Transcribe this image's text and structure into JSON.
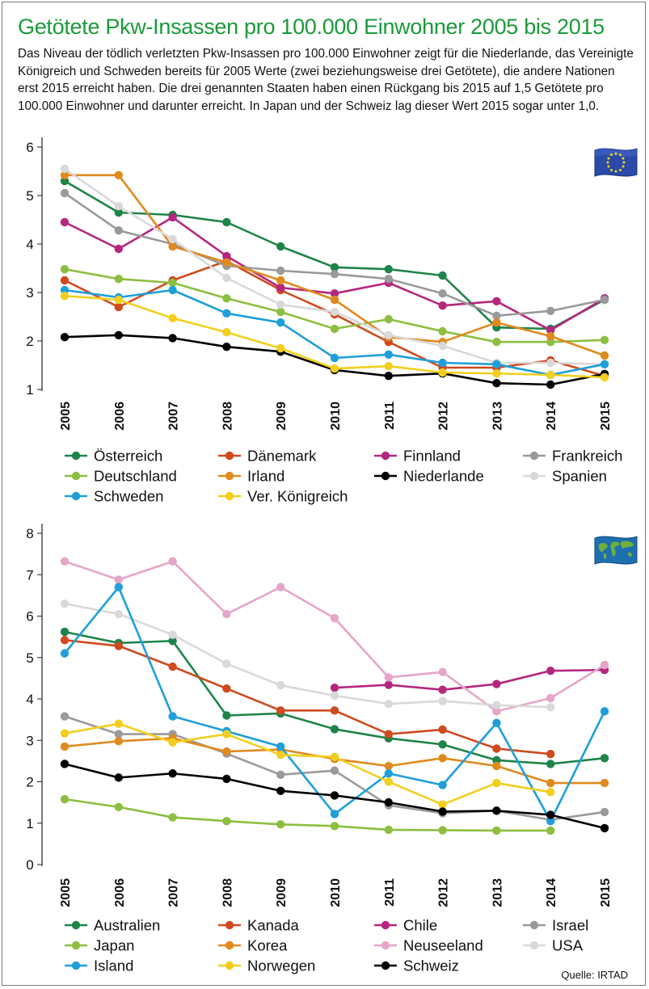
{
  "title": "Getötete Pkw-Insassen pro 100.000 Einwohner 2005 bis 2015",
  "intro": "Das Niveau der tödlich verletzten Pkw-Insassen pro 100.000 Einwohner zeigt für die Niederlande, das Vereinigte Königreich und Schweden bereits für 2005 Werte (zwei beziehungsweise drei Getötete), die andere Nationen erst 2015 erreicht haben. Die drei genannten Staaten haben einen Rückgang bis 2015 auf 1,5 Getötete pro 100.000 Einwohner und darunter erreicht. In Japan und der Schweiz lag dieser Wert 2015 sogar unter 1,0.",
  "source": "Quelle: IRTAD",
  "flags": {
    "top": "eu-flag",
    "bottom": "world-flag"
  },
  "chart_data": [
    {
      "type": "line",
      "title": "",
      "x": [
        "2005",
        "2006",
        "2007",
        "2008",
        "2009",
        "2010",
        "2011",
        "2012",
        "2013",
        "2014",
        "2015"
      ],
      "ylim": [
        1,
        6
      ],
      "yticks": [
        "1",
        "2",
        "3",
        "4",
        "5",
        "6"
      ],
      "series": [
        {
          "name": "Österreich",
          "color": "#1e8449",
          "values": [
            5.3,
            4.65,
            4.6,
            4.45,
            3.95,
            3.52,
            3.48,
            3.35,
            2.28,
            2.25,
            2.85
          ]
        },
        {
          "name": "Dänemark",
          "color": "#cf4a1e",
          "values": [
            3.25,
            2.7,
            3.25,
            3.65,
            3.05,
            2.55,
            1.98,
            1.45,
            1.45,
            1.6,
            1.28
          ]
        },
        {
          "name": "Finnland",
          "color": "#b5277e",
          "values": [
            4.45,
            3.9,
            4.55,
            3.75,
            3.1,
            2.98,
            3.2,
            2.73,
            2.82,
            2.22,
            2.88
          ]
        },
        {
          "name": "Frankreich",
          "color": "#9a9a9a",
          "values": [
            5.05,
            4.28,
            4.0,
            3.55,
            3.45,
            3.38,
            3.28,
            2.98,
            2.52,
            2.62,
            2.85
          ]
        },
        {
          "name": "Deutschland",
          "color": "#8cbf3f",
          "values": [
            3.48,
            3.28,
            3.2,
            2.88,
            2.6,
            2.25,
            2.45,
            2.2,
            1.98,
            1.98,
            2.02
          ]
        },
        {
          "name": "Irland",
          "color": "#e08a1e",
          "values": [
            5.42,
            5.42,
            3.95,
            3.62,
            3.25,
            2.85,
            2.08,
            1.98,
            2.38,
            2.1,
            1.7
          ]
        },
        {
          "name": "Niederlande",
          "color": "#000000",
          "values": [
            2.08,
            2.12,
            2.06,
            1.88,
            1.78,
            1.4,
            1.28,
            1.33,
            1.13,
            1.1,
            1.32
          ]
        },
        {
          "name": "Spanien",
          "color": "#d9d9d9",
          "values": [
            5.55,
            4.78,
            4.1,
            3.3,
            2.75,
            2.6,
            2.12,
            1.9,
            1.55,
            1.55,
            1.52
          ]
        },
        {
          "name": "Schweden",
          "color": "#1e9fd9",
          "values": [
            3.05,
            2.9,
            3.05,
            2.57,
            2.38,
            1.65,
            1.72,
            1.55,
            1.52,
            1.3,
            1.52
          ]
        },
        {
          "name": "Ver. Königreich",
          "color": "#f2cf1e",
          "values": [
            2.93,
            2.85,
            2.47,
            2.18,
            1.85,
            1.43,
            1.48,
            1.35,
            1.33,
            1.3,
            1.25
          ]
        }
      ]
    },
    {
      "type": "line",
      "title": "",
      "x": [
        "2005",
        "2006",
        "2007",
        "2008",
        "2009",
        "2010",
        "2011",
        "2012",
        "2013",
        "2014",
        "2015"
      ],
      "ylim": [
        0,
        8
      ],
      "yticks": [
        "0",
        "1",
        "2",
        "3",
        "4",
        "5",
        "6",
        "7",
        "8"
      ],
      "series": [
        {
          "name": "Australien",
          "color": "#1e8449",
          "values": [
            5.62,
            5.35,
            5.4,
            3.6,
            3.65,
            3.27,
            3.05,
            2.9,
            2.52,
            2.43,
            2.57
          ]
        },
        {
          "name": "Kanada",
          "color": "#cf4a1e",
          "values": [
            5.42,
            5.28,
            4.78,
            4.25,
            3.72,
            3.72,
            3.15,
            3.26,
            2.8,
            2.67,
            null
          ]
        },
        {
          "name": "Chile",
          "color": "#b5277e",
          "values": [
            null,
            null,
            null,
            null,
            null,
            4.27,
            4.34,
            4.22,
            4.36,
            4.68,
            4.7
          ]
        },
        {
          "name": "Israel",
          "color": "#9a9a9a",
          "values": [
            3.58,
            3.15,
            3.15,
            2.68,
            2.17,
            2.27,
            1.43,
            1.24,
            1.3,
            1.08,
            1.27
          ]
        },
        {
          "name": "Japan",
          "color": "#8cbf3f",
          "values": [
            1.58,
            1.39,
            1.14,
            1.05,
            0.97,
            0.93,
            0.84,
            0.83,
            0.82,
            0.82,
            null
          ]
        },
        {
          "name": "Korea",
          "color": "#e08a1e",
          "values": [
            2.85,
            2.98,
            3.05,
            2.73,
            2.78,
            2.55,
            2.38,
            2.57,
            2.38,
            1.97,
            1.97
          ]
        },
        {
          "name": "Neuseeland",
          "color": "#e6a6c9",
          "values": [
            7.32,
            6.88,
            7.32,
            6.05,
            6.7,
            5.95,
            4.52,
            4.65,
            3.7,
            4.02,
            4.82
          ]
        },
        {
          "name": "USA",
          "color": "#d9d9d9",
          "values": [
            6.3,
            6.05,
            5.55,
            4.85,
            4.33,
            4.08,
            3.88,
            3.95,
            3.85,
            3.8,
            null
          ]
        },
        {
          "name": "Island",
          "color": "#1e9fd9",
          "values": [
            5.1,
            6.7,
            3.58,
            3.22,
            2.85,
            1.22,
            2.2,
            1.92,
            3.42,
            1.05,
            3.7
          ]
        },
        {
          "name": "Norwegen",
          "color": "#f2cf1e",
          "values": [
            3.17,
            3.4,
            2.95,
            3.15,
            2.65,
            2.6,
            2.0,
            1.45,
            1.97,
            1.75,
            null
          ]
        },
        {
          "name": "Schweiz",
          "color": "#000000",
          "values": [
            2.43,
            2.1,
            2.2,
            2.07,
            1.78,
            1.67,
            1.5,
            1.28,
            1.3,
            1.2,
            0.88
          ]
        }
      ]
    }
  ]
}
